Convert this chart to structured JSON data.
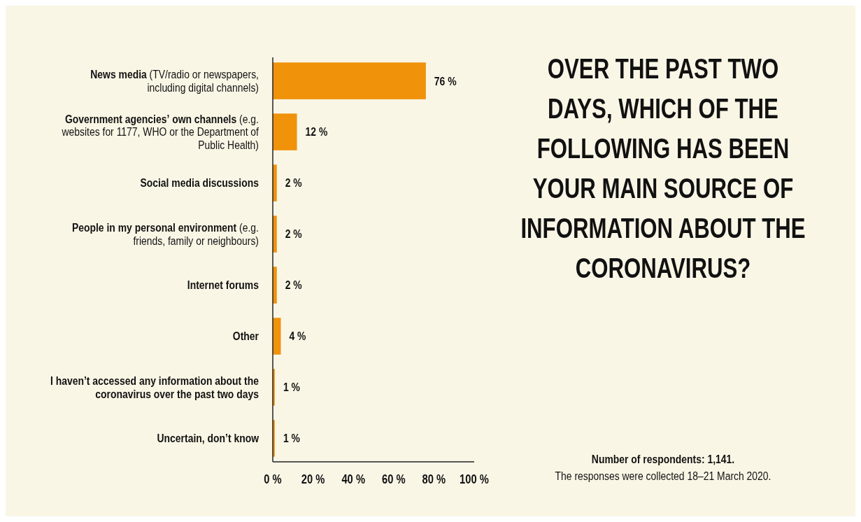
{
  "chart_data": {
    "type": "bar",
    "orientation": "horizontal",
    "title": "OVER THE PAST TWO DAYS, WHICH OF THE FOLLOWING HAS BEEN YOUR MAIN SOURCE OF INFORMATION ABOUT THE CORONAVIRUS?",
    "categories": [
      "News media (TV/radio or newspapers, including digital channels)",
      "Government agencies’ own channels (e.g. websites for 1177, WHO or the Department of Public Health)",
      "Social media discussions",
      "People in my personal environment (e.g. friends, family or neighbours)",
      "Internet forums",
      "Other",
      "I haven’t accessed any information about the coronavirus over the past two days",
      "Uncertain, don’t know"
    ],
    "values": [
      76,
      12,
      2,
      2,
      2,
      4,
      1,
      1
    ],
    "value_labels": [
      "76 %",
      "12 %",
      "2 %",
      "2 %",
      "2 %",
      "4 %",
      "1 %",
      "1 %"
    ],
    "color": "#f0920a",
    "xlim": [
      0,
      100
    ],
    "xticks": [
      {
        "value": 0,
        "label": "0 %"
      },
      {
        "value": 20,
        "label": "20 %"
      },
      {
        "value": 40,
        "label": "40 %"
      },
      {
        "value": 60,
        "label": "60 %"
      },
      {
        "value": 80,
        "label": "80 %"
      },
      {
        "value": 100,
        "label": "100 %"
      }
    ],
    "annotations": [
      "Number of respondents: 1,141.",
      "The responses were collected 18–21 March 2020."
    ]
  }
}
